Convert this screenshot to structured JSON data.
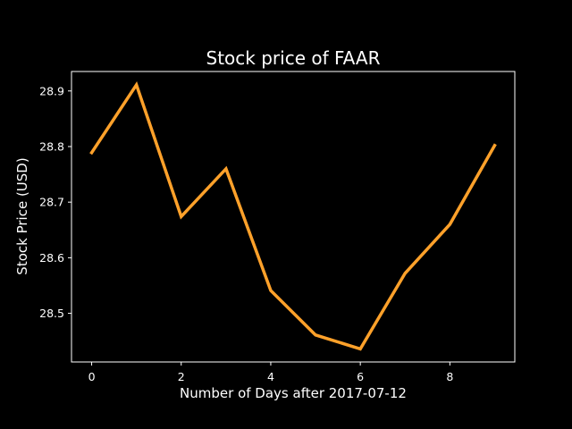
{
  "chart_data": {
    "type": "line",
    "title": "Stock price of FAAR",
    "xlabel": "Number of Days after 2017-07-12",
    "ylabel": "Stock Price (USD)",
    "x": [
      0,
      1,
      2,
      3,
      4,
      5,
      6,
      7,
      8,
      9
    ],
    "y": [
      28.789,
      28.911,
      28.674,
      28.76,
      28.541,
      28.461,
      28.436,
      28.572,
      28.66,
      28.802
    ],
    "xlim": [
      -0.45,
      9.45
    ],
    "ylim": [
      28.4125,
      28.935
    ],
    "xticks": [
      0,
      2,
      4,
      6,
      8
    ],
    "xtick_labels": [
      "0",
      "2",
      "4",
      "6",
      "8"
    ],
    "yticks": [
      28.5,
      28.6,
      28.7,
      28.8,
      28.9
    ],
    "ytick_labels": [
      "28.5",
      "28.6",
      "28.7",
      "28.8",
      "28.9"
    ],
    "line_color": "#ffa12a",
    "background": "#000000",
    "grid": false
  }
}
